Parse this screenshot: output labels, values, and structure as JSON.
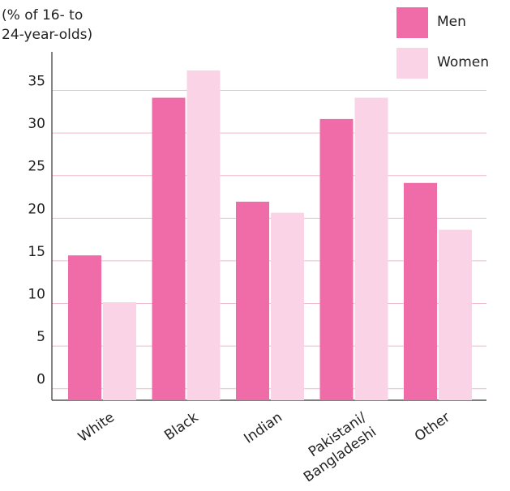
{
  "chart_data": {
    "type": "bar",
    "ylabel": "(% of 16- to 24-year-olds)",
    "ylabel_lines": [
      "(% of 16- to",
      "24-year-olds)"
    ],
    "categories": [
      "White",
      "Black",
      "Indian",
      "Pakistani/\nBangladeshi",
      "Other"
    ],
    "category_lines": [
      [
        "White"
      ],
      [
        "Black"
      ],
      [
        "Indian"
      ],
      [
        "Pakistani/",
        "Bangladeshi"
      ],
      [
        "Other"
      ]
    ],
    "series": [
      {
        "name": "Men",
        "values": [
          14.5,
          33,
          20.8,
          30.5,
          23
        ],
        "color": "#f06ca8"
      },
      {
        "name": "Women",
        "values": [
          9,
          36.2,
          19.5,
          33,
          17.5
        ],
        "color": "#fbd3e6"
      }
    ],
    "yticks": [
      0,
      5,
      10,
      15,
      20,
      25,
      30,
      35
    ],
    "ylim": [
      -2.5,
      38
    ],
    "grid": true,
    "legend_position": "top-right"
  }
}
